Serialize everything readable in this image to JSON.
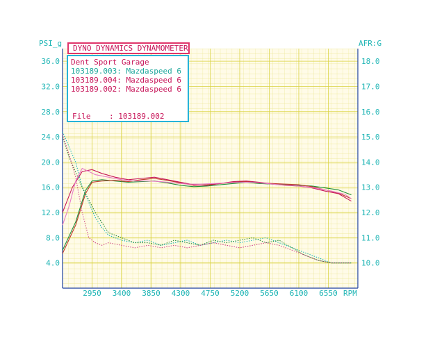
{
  "chart_data": {
    "type": "line",
    "title": "DYNO DYNAMICS DYNAMOMETER",
    "info": {
      "shop": "Dent Sport Garage",
      "runs": [
        {
          "label": "103189.003: Mazdaspeed 6",
          "color": "#1fa89c"
        },
        {
          "label": "103189.004: Mazdaspeed 6",
          "color": "#c8165a"
        },
        {
          "label": "103189.002: Mazdaspeed 6",
          "color": "#c8165a"
        }
      ],
      "file_label": "File",
      "file_value": ": 103189.002"
    },
    "left_axis": {
      "label": "PSI_g",
      "ticks": [
        "36.0",
        "32.0",
        "28.0",
        "24.0",
        "20.0",
        "16.0",
        "12.0",
        "8.0",
        "4.0"
      ],
      "range": [
        0,
        38
      ]
    },
    "right_axis": {
      "label": "AFR:G",
      "ticks": [
        "18.0",
        "17.0",
        "16.0",
        "15.0",
        "14.0",
        "13.0",
        "12.0",
        "11.0",
        "10.0"
      ],
      "range": [
        9.0,
        18.5
      ]
    },
    "x_axis": {
      "label": "RPM",
      "ticks": [
        "2950",
        "3400",
        "3850",
        "4300",
        "4750",
        "5200",
        "5650",
        "6100",
        "6550"
      ],
      "range": [
        2500,
        7000
      ]
    },
    "series": [
      {
        "name": "103189.003 boost",
        "axis": "left",
        "color": "#1e8f3a",
        "style": "solid",
        "x": [
          2500,
          2700,
          2850,
          2950,
          3100,
          3300,
          3500,
          3700,
          3900,
          4100,
          4300,
          4500,
          4700,
          4900,
          5100,
          5300,
          5500,
          5700,
          5900,
          6100,
          6300,
          6500,
          6700,
          6900
        ],
        "y": [
          6.0,
          10.5,
          15.5,
          17.0,
          17.2,
          17.0,
          16.8,
          16.9,
          17.0,
          16.7,
          16.3,
          16.1,
          16.2,
          16.4,
          16.6,
          16.8,
          16.6,
          16.5,
          16.4,
          16.3,
          16.2,
          15.9,
          15.6,
          14.8
        ]
      },
      {
        "name": "103189.004 boost",
        "axis": "left",
        "color": "#c0392b",
        "style": "solid",
        "x": [
          2500,
          2700,
          2850,
          2950,
          3100,
          3300,
          3500,
          3700,
          3900,
          4100,
          4300,
          4500,
          4700,
          4900,
          5100,
          5300,
          5500,
          5700,
          5900,
          6100,
          6300,
          6500,
          6700,
          6900
        ],
        "y": [
          5.5,
          10.0,
          15.0,
          16.8,
          17.0,
          17.1,
          16.9,
          17.2,
          17.4,
          17.1,
          16.7,
          16.3,
          16.4,
          16.6,
          16.8,
          16.9,
          16.7,
          16.6,
          16.5,
          16.4,
          16.1,
          15.6,
          15.1,
          14.2
        ]
      },
      {
        "name": "103189.002 boost",
        "axis": "left",
        "color": "#c8165a",
        "style": "solid",
        "x": [
          2500,
          2650,
          2800,
          2950,
          3100,
          3300,
          3500,
          3700,
          3900,
          4100,
          4300,
          4500,
          4700,
          4900,
          5100,
          5300,
          5500,
          5700,
          5900,
          6100,
          6300,
          6500,
          6700,
          6900
        ],
        "y": [
          12.0,
          16.0,
          18.5,
          18.8,
          18.2,
          17.6,
          17.2,
          17.4,
          17.6,
          17.2,
          16.8,
          16.4,
          16.3,
          16.6,
          16.9,
          17.0,
          16.8,
          16.5,
          16.3,
          16.2,
          15.9,
          15.4,
          15.0,
          13.8
        ]
      },
      {
        "name": "103189.003 AFR",
        "axis": "right",
        "color": "#1fb5b5",
        "style": "dotted",
        "x": [
          2500,
          2600,
          2700,
          2800,
          2900,
          3000,
          3100,
          3200,
          3400,
          3600,
          3800,
          4000,
          4200,
          4400,
          4600,
          4800,
          5000,
          5200,
          5400,
          5600,
          5800,
          6000,
          6200,
          6400,
          6600,
          6800,
          6900
        ],
        "y": [
          15.2,
          14.6,
          14.0,
          13.0,
          12.4,
          11.8,
          11.4,
          11.1,
          10.9,
          10.8,
          10.9,
          10.7,
          10.8,
          10.9,
          10.7,
          10.8,
          10.9,
          10.8,
          10.9,
          11.0,
          10.8,
          10.6,
          10.4,
          10.2,
          10.0,
          10.0,
          10.0
        ]
      },
      {
        "name": "103189.004 AFR",
        "axis": "right",
        "color": "#2c8c3a",
        "style": "dotted",
        "x": [
          2500,
          2600,
          2700,
          2800,
          2900,
          3000,
          3100,
          3200,
          3400,
          3600,
          3800,
          4000,
          4200,
          4400,
          4600,
          4800,
          5000,
          5200,
          5400,
          5600,
          5800,
          6000,
          6200,
          6400,
          6600,
          6800,
          6900
        ],
        "y": [
          15.0,
          14.2,
          13.6,
          13.0,
          12.5,
          12.0,
          11.6,
          11.2,
          11.0,
          10.8,
          10.8,
          10.7,
          10.9,
          10.8,
          10.7,
          10.9,
          10.8,
          10.9,
          11.0,
          10.8,
          10.9,
          10.6,
          10.3,
          10.1,
          10.0,
          10.0,
          10.0
        ]
      },
      {
        "name": "103189.002 AFR",
        "axis": "right",
        "color": "#d04a8a",
        "style": "dotted",
        "x": [
          2500,
          2600,
          2700,
          2800,
          2900,
          3000,
          3100,
          3200,
          3400,
          3600,
          3800,
          4000,
          4200,
          4400,
          4600,
          4800,
          5000,
          5200,
          5400,
          5600,
          5800,
          6000,
          6200,
          6400,
          6600,
          6800,
          6900
        ],
        "y": [
          15.1,
          14.3,
          13.4,
          12.0,
          11.0,
          10.8,
          10.7,
          10.8,
          10.7,
          10.6,
          10.7,
          10.6,
          10.7,
          10.6,
          10.7,
          10.8,
          10.7,
          10.6,
          10.7,
          10.8,
          10.7,
          10.5,
          10.3,
          10.1,
          10.0,
          10.0,
          10.0
        ]
      },
      {
        "name": "103189.003 pink boost",
        "axis": "left",
        "color": "#e87cc7",
        "style": "solid",
        "x": [
          2500,
          2600,
          2700,
          2800,
          2900,
          3000,
          3200,
          3400,
          3600,
          3800,
          4000,
          4200,
          4400,
          4600,
          4800,
          5000,
          5200,
          5400,
          5600,
          5800,
          6000,
          6200,
          6400,
          6600,
          6800,
          6900
        ],
        "y": [
          10.0,
          13.0,
          17.0,
          19.0,
          18.5,
          18.0,
          17.6,
          17.2,
          17.0,
          17.0,
          16.9,
          16.7,
          16.5,
          16.5,
          16.6,
          16.7,
          16.8,
          16.8,
          16.6,
          16.4,
          16.3,
          16.1,
          15.8,
          15.4,
          14.9,
          14.2
        ]
      }
    ],
    "grid": true
  }
}
